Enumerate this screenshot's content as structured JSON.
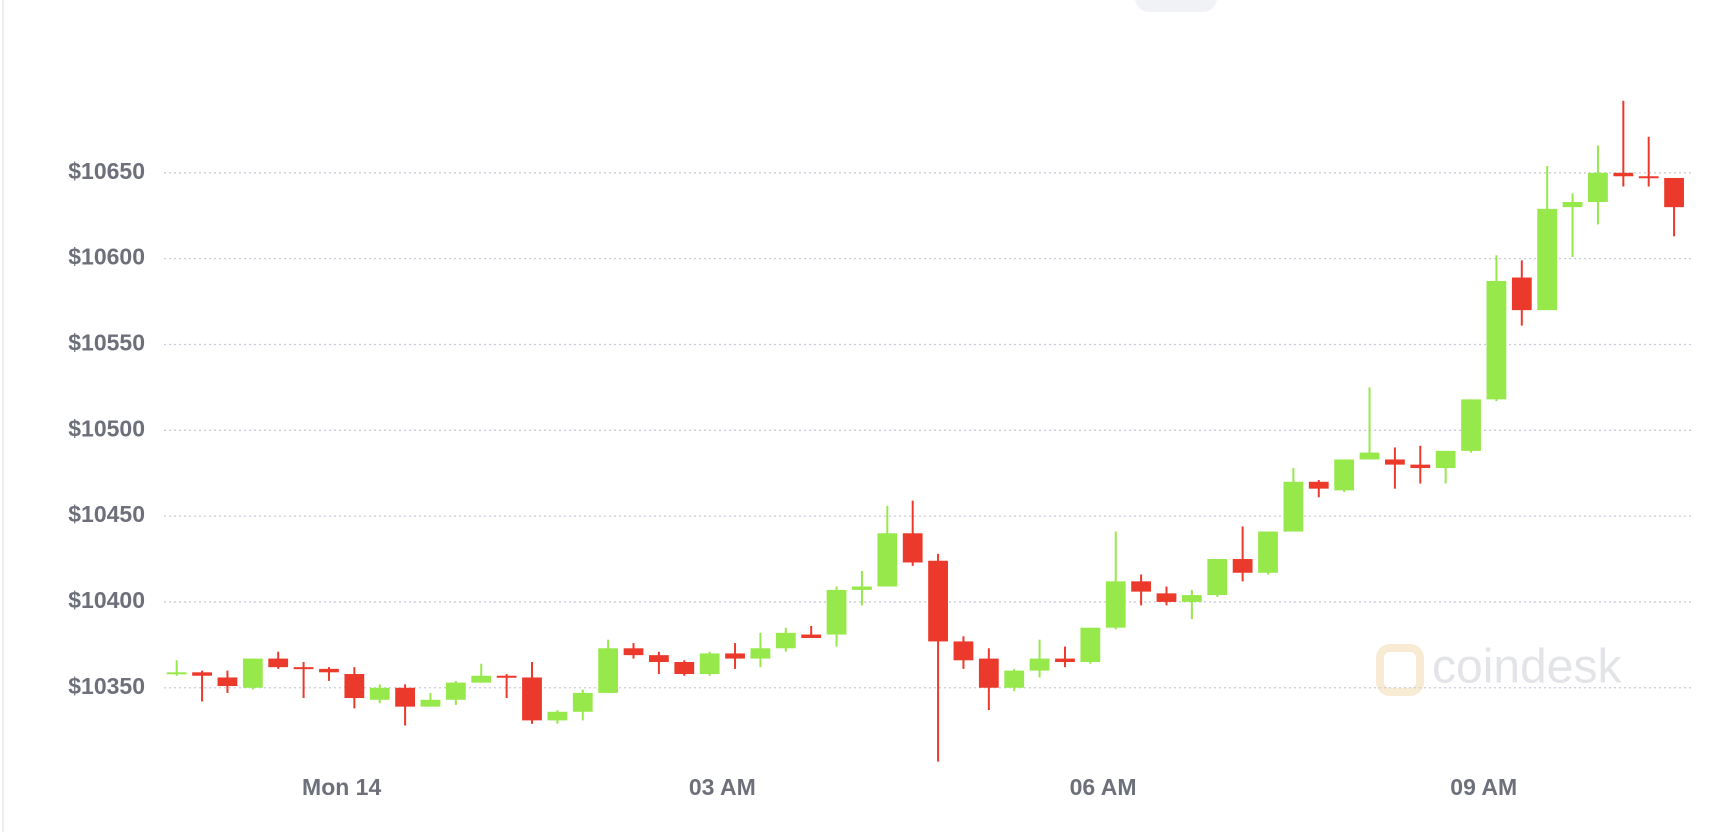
{
  "chart_data": {
    "type": "candlestick",
    "watermark": "coindesk",
    "x": [
      -78,
      -66,
      -54,
      -42,
      -30,
      -18,
      -6,
      6,
      18,
      30,
      42,
      54,
      66,
      78,
      90,
      102,
      114,
      126,
      138,
      150,
      162,
      174,
      186,
      198,
      210,
      222,
      234,
      246,
      258,
      270,
      282,
      294,
      306,
      318,
      330,
      342,
      354,
      366,
      378,
      390,
      402,
      414,
      426,
      438,
      450,
      462,
      474,
      486,
      498,
      510,
      522,
      534,
      546,
      558,
      570,
      582,
      594,
      606,
      618,
      630
    ],
    "open": [
      10358,
      10359,
      10356,
      10350,
      10367,
      10362,
      10361,
      10358,
      10343,
      10350,
      10339,
      10343,
      10353,
      10357,
      10356,
      10331,
      10336,
      10347,
      10373,
      10369,
      10365,
      10358,
      10370,
      10367,
      10373,
      10381,
      10381,
      10407,
      10409,
      10440,
      10424,
      10377,
      10367,
      10350,
      10360,
      10367,
      10365,
      10385,
      10412,
      10405,
      10400,
      10404,
      10425,
      10417,
      10441,
      10470,
      10465,
      10483,
      10483,
      10480,
      10478,
      10488,
      10518,
      10589,
      10570,
      10630,
      10633,
      10650,
      10648,
      10647
    ],
    "high": [
      10366,
      10360,
      10360,
      10367,
      10371,
      10365,
      10362,
      10362,
      10352,
      10352,
      10347,
      10354,
      10364,
      10358,
      10365,
      10337,
      10349,
      10378,
      10376,
      10371,
      10366,
      10371,
      10376,
      10382,
      10385,
      10386,
      10409,
      10418,
      10456,
      10459,
      10428,
      10380,
      10373,
      10361,
      10378,
      10374,
      10385,
      10441,
      10416,
      10409,
      10407,
      10425,
      10444,
      10441,
      10478,
      10471,
      10483,
      10525,
      10490,
      10491,
      10488,
      10518,
      10602,
      10599,
      10654,
      10638,
      10666,
      10692,
      10671,
      10647
    ],
    "low": [
      10357,
      10342,
      10347,
      10349,
      10361,
      10344,
      10354,
      10338,
      10341,
      10328,
      10339,
      10340,
      10353,
      10344,
      10329,
      10329,
      10331,
      10347,
      10367,
      10358,
      10357,
      10357,
      10361,
      10362,
      10371,
      10379,
      10374,
      10398,
      10409,
      10421,
      10307,
      10361,
      10337,
      10348,
      10356,
      10362,
      10364,
      10384,
      10398,
      10398,
      10390,
      10403,
      10412,
      10416,
      10441,
      10461,
      10464,
      10483,
      10466,
      10469,
      10469,
      10487,
      10517,
      10561,
      10570,
      10601,
      10620,
      10642,
      10642,
      10613
    ],
    "close": [
      10359,
      10357,
      10351,
      10367,
      10362,
      10361,
      10359,
      10344,
      10350,
      10339,
      10343,
      10353,
      10357,
      10356,
      10331,
      10336,
      10347,
      10373,
      10369,
      10365,
      10358,
      10370,
      10367,
      10373,
      10382,
      10379,
      10407,
      10409,
      10440,
      10423,
      10377,
      10366,
      10350,
      10360,
      10367,
      10365,
      10385,
      10412,
      10406,
      10400,
      10404,
      10425,
      10417,
      10441,
      10470,
      10466,
      10483,
      10487,
      10480,
      10478,
      10488,
      10518,
      10587,
      10570,
      10629,
      10633,
      10650,
      10648,
      10647,
      10630
    ],
    "up_color": "#96e84b",
    "down_color": "#eb3a2c",
    "xlim": [
      -84,
      638
    ],
    "xticks": [
      {
        "value": 0,
        "label": "Mon 14"
      },
      {
        "value": 180,
        "label": "03 AM"
      },
      {
        "value": 360,
        "label": "06 AM"
      },
      {
        "value": 540,
        "label": "09 AM"
      }
    ],
    "ylim": [
      10305,
      10700
    ],
    "yticks": [
      {
        "value": 10350,
        "label": "$10350"
      },
      {
        "value": 10400,
        "label": "$10400"
      },
      {
        "value": 10450,
        "label": "$10450"
      },
      {
        "value": 10500,
        "label": "$10500"
      },
      {
        "value": 10550,
        "label": "$10550"
      },
      {
        "value": 10600,
        "label": "$10600"
      },
      {
        "value": 10650,
        "label": "$10650"
      }
    ],
    "grid": true
  }
}
